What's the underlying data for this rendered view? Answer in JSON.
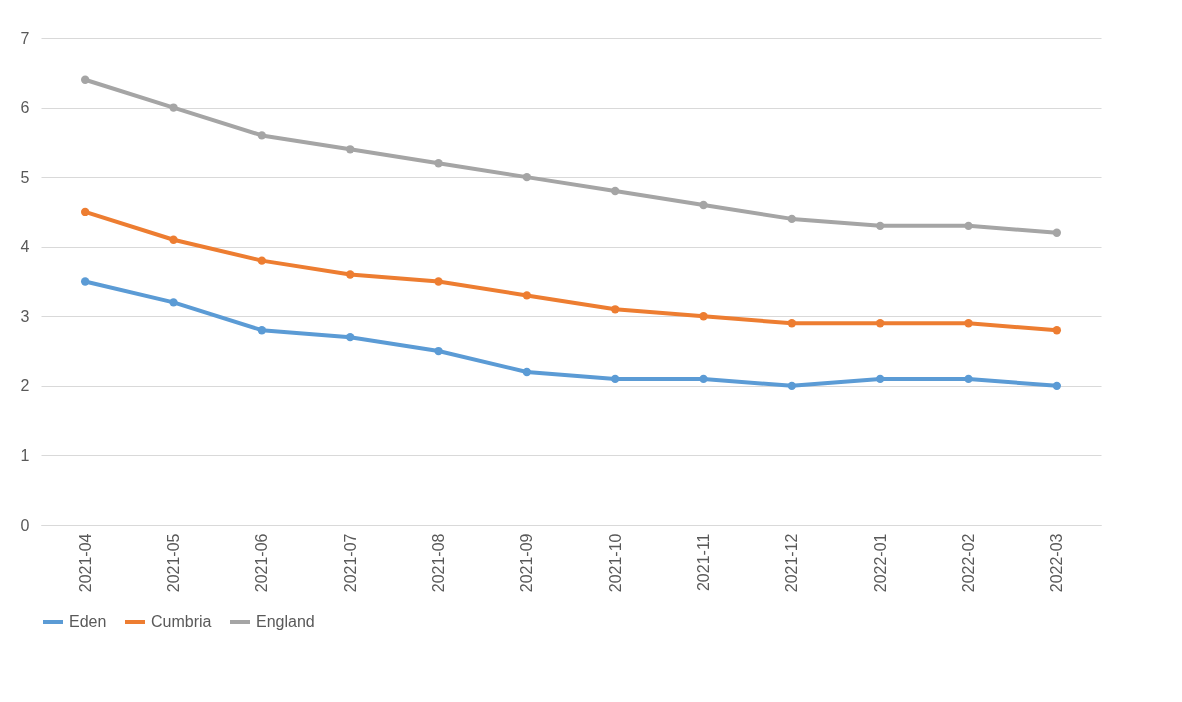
{
  "chart_data": {
    "type": "line",
    "categories": [
      "2021-04",
      "2021-05",
      "2021-06",
      "2021-07",
      "2021-08",
      "2021-09",
      "2021-10",
      "2021-11",
      "2021-12",
      "2022-01",
      "2022-02",
      "2022-03"
    ],
    "series": [
      {
        "name": "Eden",
        "color": "#5b9bd5",
        "values": [
          3.5,
          3.2,
          2.8,
          2.7,
          2.5,
          2.2,
          2.1,
          2.1,
          2.0,
          2.1,
          2.1,
          2.0
        ]
      },
      {
        "name": "Cumbria",
        "color": "#ed7d31",
        "values": [
          4.5,
          4.1,
          3.8,
          3.6,
          3.5,
          3.3,
          3.1,
          3.0,
          2.9,
          2.9,
          2.9,
          2.8
        ]
      },
      {
        "name": "England",
        "color": "#a5a5a5",
        "values": [
          6.4,
          6.0,
          5.6,
          5.4,
          5.2,
          5.0,
          4.8,
          4.6,
          4.4,
          4.3,
          4.3,
          4.2
        ]
      }
    ],
    "ylim": [
      0,
      7
    ],
    "yticks": [
      0,
      1,
      2,
      3,
      4,
      5,
      6,
      7
    ],
    "grid": "y",
    "legend": "bottom",
    "marker": "circle",
    "line_style": "solid"
  }
}
